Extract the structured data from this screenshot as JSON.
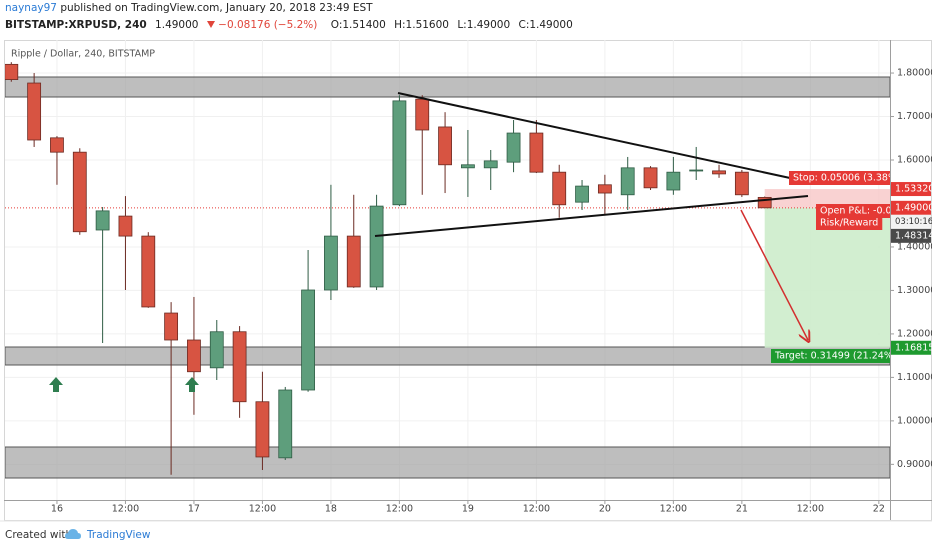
{
  "header": {
    "author": "naynay97",
    "published": "published on TradingView.com, January 20, 2018 23:49 EST",
    "symbol": "BITSTAMP:XRPUSD, 240",
    "last": "1.49000",
    "change": "−0.08176 (−5.2%)",
    "ohlc": [
      "O:1.51400",
      "H:1.51600",
      "L:1.49000",
      "C:1.49000"
    ]
  },
  "chart_data": {
    "type": "candlestick",
    "title": "Ripple / Dollar, 240, BITSTAMP",
    "categories": [
      null,
      null,
      "16",
      null,
      null,
      "12:00",
      null,
      null,
      "17",
      null,
      null,
      "12:00",
      null,
      null,
      "18",
      null,
      null,
      "12:00",
      null,
      null,
      "19",
      null,
      null,
      "12:00",
      null,
      null,
      "20",
      null,
      null,
      "12:00",
      null,
      null,
      "21",
      null,
      null,
      "12:00",
      null,
      null,
      "22"
    ],
    "open": [
      1.82,
      1.777,
      1.651,
      1.618,
      1.439,
      1.471,
      1.425,
      1.248,
      1.186,
      1.122,
      1.205,
      1.044,
      0.915,
      1.071,
      1.301,
      1.425,
      1.308,
      1.497,
      1.74,
      1.676,
      1.582,
      1.582,
      1.595,
      1.662,
      1.572,
      1.503,
      1.543,
      1.52,
      1.582,
      1.531,
      1.575,
      1.575,
      1.572,
      1.514,
      null,
      null,
      null,
      null,
      null
    ],
    "high": [
      1.825,
      1.8,
      1.655,
      1.627,
      1.492,
      1.517,
      1.434,
      1.273,
      1.285,
      1.232,
      1.218,
      1.113,
      1.078,
      1.393,
      1.543,
      1.52,
      1.52,
      1.749,
      1.749,
      1.71,
      1.669,
      1.623,
      1.692,
      1.692,
      1.589,
      1.554,
      1.566,
      1.607,
      1.586,
      1.607,
      1.63,
      1.589,
      1.577,
      1.516,
      null,
      null,
      null,
      null,
      null
    ],
    "low": [
      1.78,
      1.63,
      1.543,
      1.428,
      1.179,
      1.301,
      1.26,
      0.876,
      1.014,
      1.094,
      1.007,
      0.887,
      0.91,
      1.067,
      1.278,
      1.306,
      1.301,
      1.494,
      1.52,
      1.524,
      1.515,
      1.531,
      1.572,
      1.57,
      1.467,
      1.485,
      1.474,
      1.485,
      1.531,
      1.52,
      1.554,
      1.559,
      1.515,
      1.49,
      null,
      null,
      null,
      null,
      null
    ],
    "close": [
      1.785,
      1.646,
      1.618,
      1.435,
      1.483,
      1.425,
      1.262,
      1.186,
      1.113,
      1.205,
      1.044,
      0.917,
      1.071,
      1.301,
      1.425,
      1.308,
      1.494,
      1.736,
      1.669,
      1.589,
      1.589,
      1.598,
      1.662,
      1.572,
      1.497,
      1.54,
      1.524,
      1.582,
      1.536,
      1.572,
      1.577,
      1.568,
      1.52,
      1.49,
      null,
      null,
      null,
      null,
      null
    ],
    "up_color": "#5e9e7c",
    "down_color": "#d75442",
    "ylim": [
      0.818,
      1.876
    ],
    "yticks": [
      {
        "value": 0.9,
        "label": "0.90000"
      },
      {
        "value": 1.0,
        "label": "1.00000"
      },
      {
        "value": 1.1,
        "label": "1.10000"
      },
      {
        "value": 1.2,
        "label": "1.20000"
      },
      {
        "value": 1.3,
        "label": "1.30000"
      },
      {
        "value": 1.4,
        "label": "1.40000"
      },
      {
        "value": 1.6,
        "label": "1.60000"
      },
      {
        "value": 1.7,
        "label": "1.70000"
      },
      {
        "value": 1.8,
        "label": "1.80000"
      }
    ],
    "grid": true,
    "price_labels": [
      {
        "value": 1.5332,
        "label": "1.53320",
        "color": "#e53935"
      },
      {
        "value": 1.49,
        "label": "1.49000",
        "color": "#e53935"
      },
      {
        "value": 1.48314,
        "label": "1.48314",
        "color": "#4a4a4a"
      },
      {
        "value": 1.16815,
        "label": "1.16815",
        "color": "#1e9a2f"
      }
    ],
    "countdown": "03:10:16",
    "annotations": {
      "stop": "Stop: 0.05006 (3.38%",
      "open_pnl": "Open P&L: -0.0",
      "risk_reward": "Risk/Reward",
      "target": "Target: 0.31499 (21.24%"
    }
  },
  "footer": {
    "created": "Created with",
    "brand": "TradingView"
  }
}
